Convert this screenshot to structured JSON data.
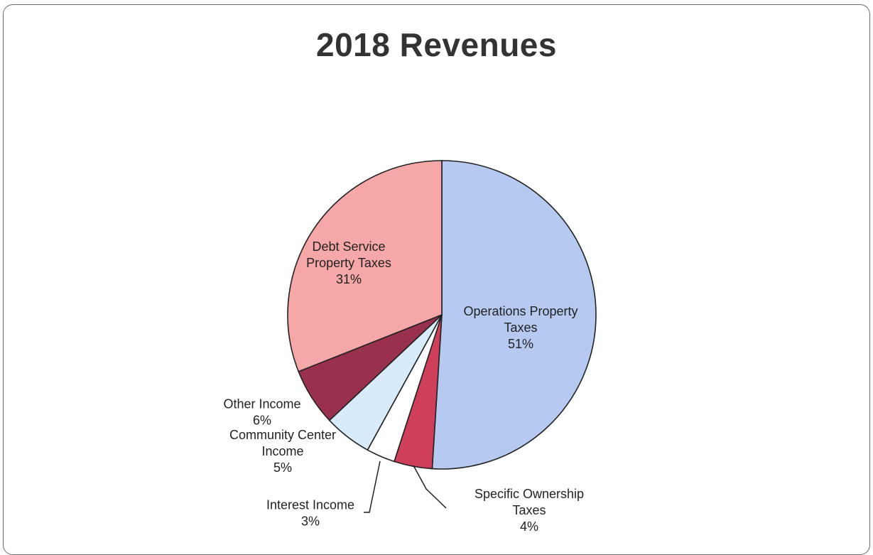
{
  "chart_data": {
    "type": "pie",
    "title": "2018 Revenues",
    "slices": [
      {
        "label_lines": [
          "Operations Property",
          "Taxes"
        ],
        "pct_text": "51%",
        "value": 51,
        "color": "#b6c9f1"
      },
      {
        "label_lines": [
          "Specific Ownership",
          "Taxes"
        ],
        "pct_text": "4%",
        "value": 4,
        "color": "#cf3f59"
      },
      {
        "label_lines": [
          "Interest Income"
        ],
        "pct_text": "3%",
        "value": 3,
        "color": "#ffffff"
      },
      {
        "label_lines": [
          "Community Center",
          "Income"
        ],
        "pct_text": "5%",
        "value": 5,
        "color": "#d7ebfb"
      },
      {
        "label_lines": [
          "Other Income"
        ],
        "pct_text": "6%",
        "value": 6,
        "color": "#99304e"
      },
      {
        "label_lines": [
          "Debt Service",
          "Property Taxes"
        ],
        "pct_text": "31%",
        "value": 31,
        "color": "#f6a7a8"
      }
    ]
  }
}
